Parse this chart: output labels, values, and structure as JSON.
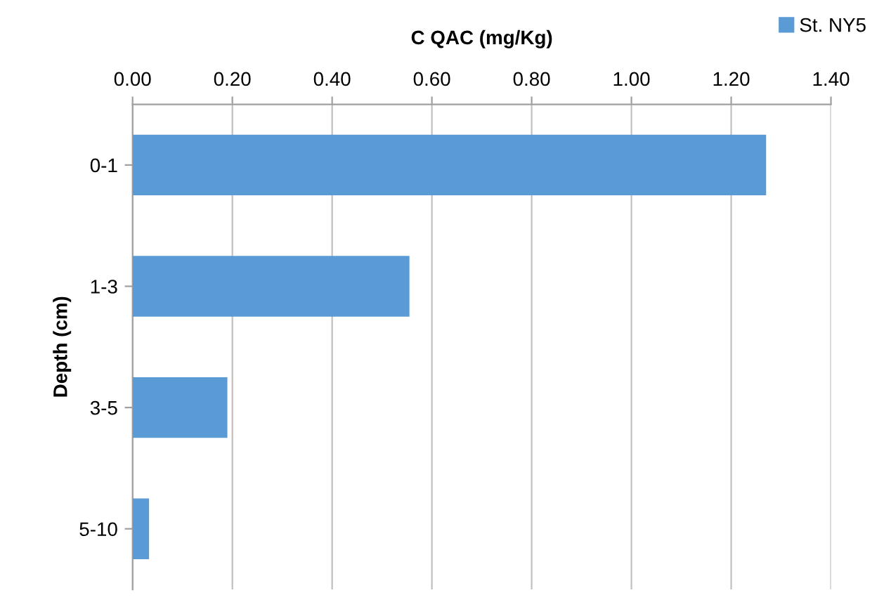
{
  "chart_data": {
    "type": "bar",
    "orientation": "horizontal",
    "xlabel": "C QAC (mg/Kg)",
    "ylabel": "Depth (cm)",
    "categories": [
      "0-1",
      "1-3",
      "3-5",
      "5-10"
    ],
    "series": [
      {
        "name": "St. NY5",
        "color": "#5b9bd5",
        "values": [
          1.27,
          0.555,
          0.19,
          0.033
        ]
      }
    ],
    "xlim": [
      0,
      1.4
    ],
    "xticks": [
      {
        "value": 0,
        "label": "0.00"
      },
      {
        "value": 0.2,
        "label": "0.20"
      },
      {
        "value": 0.4,
        "label": "0.40"
      },
      {
        "value": 0.6,
        "label": "0.60"
      },
      {
        "value": 0.8,
        "label": "0.80"
      },
      {
        "value": 1.0,
        "label": "1.00"
      },
      {
        "value": 1.2,
        "label": "1.20"
      },
      {
        "value": 1.4,
        "label": "1.40"
      }
    ],
    "grid": "x",
    "legend": "top right"
  }
}
